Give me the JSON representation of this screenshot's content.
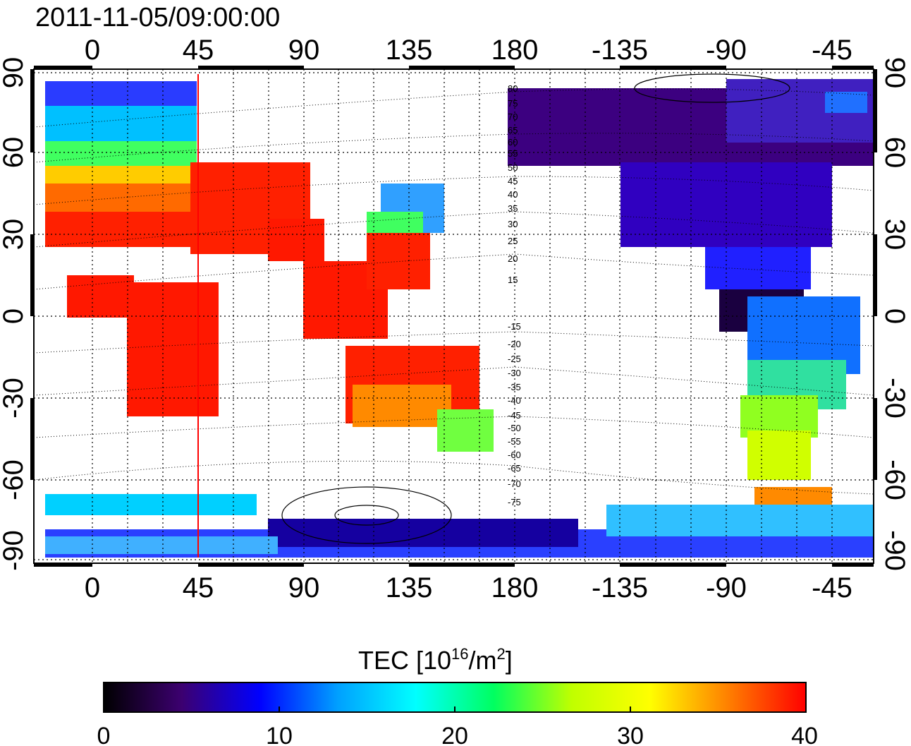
{
  "title": "2011-11-05/09:00:00",
  "map": {
    "lon_ticks_top": [
      "0",
      "45",
      "90",
      "135",
      "180",
      "-135",
      "-90",
      "-45"
    ],
    "lon_ticks_bottom": [
      "0",
      "45",
      "90",
      "135",
      "180",
      "-135",
      "-90",
      "-45"
    ],
    "lat_ticks_left": [
      "90",
      "60",
      "30",
      "0",
      "-30",
      "-60",
      "-90"
    ],
    "lat_ticks_right": [
      "90",
      "60",
      "30",
      "0",
      "-30",
      "-60",
      "-90"
    ],
    "contour_labels": [
      "80",
      "75",
      "70",
      "65",
      "60",
      "55",
      "50",
      "45",
      "40",
      "35",
      "30",
      "25",
      "20",
      "15",
      "-15",
      "-20",
      "-25",
      "-30",
      "-35",
      "-40",
      "-45",
      "-50",
      "-55",
      "-60",
      "-65",
      "-70",
      "-75"
    ],
    "marker_longitude": 45,
    "marker_color": "#ff0000"
  },
  "colorbar": {
    "label_main": "TEC  [10",
    "label_sup1": "16",
    "label_mid": "/m",
    "label_sup2": "2",
    "label_end": "]",
    "ticks": [
      "0",
      "10",
      "20",
      "30",
      "40"
    ],
    "min": 0,
    "max": 40,
    "colors": [
      "#000000",
      "#3c0070",
      "#0000ff",
      "#00a0ff",
      "#00ffff",
      "#00ff60",
      "#c0ff00",
      "#ffff00",
      "#ff8000",
      "#ff0000"
    ]
  }
}
